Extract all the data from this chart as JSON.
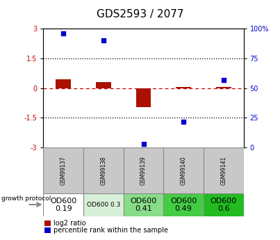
{
  "title": "GDS2593 / 2077",
  "samples": [
    "GSM99137",
    "GSM99138",
    "GSM99139",
    "GSM99140",
    "GSM99141"
  ],
  "log2_ratio": [
    0.45,
    0.3,
    -0.95,
    0.05,
    0.08
  ],
  "percentile_rank": [
    96,
    90,
    3,
    22,
    57
  ],
  "ylim_left": [
    -3,
    3
  ],
  "ylim_right": [
    0,
    100
  ],
  "yticks_left": [
    -3,
    -1.5,
    0,
    1.5,
    3
  ],
  "yticks_right": [
    0,
    25,
    50,
    75,
    100
  ],
  "bar_color": "#aa1100",
  "dot_color": "#0000cc",
  "zero_line_color": "#cc0000",
  "dotted_line_color": "#000000",
  "sample_bg": "#c8c8c8",
  "protocol_labels": [
    "OD600\n0.19",
    "OD600 0.3",
    "OD600\n0.41",
    "OD600\n0.49",
    "OD600\n0.6"
  ],
  "protocol_colors": [
    "#ffffff",
    "#d8f0d8",
    "#88dd88",
    "#44cc44",
    "#22bb22"
  ],
  "protocol_text_sizes": [
    8,
    6.5,
    8,
    8,
    8
  ],
  "legend_log2_color": "#aa1100",
  "legend_pct_color": "#0000cc",
  "left_axis_color": "#cc0000",
  "right_axis_color": "#0000cc"
}
